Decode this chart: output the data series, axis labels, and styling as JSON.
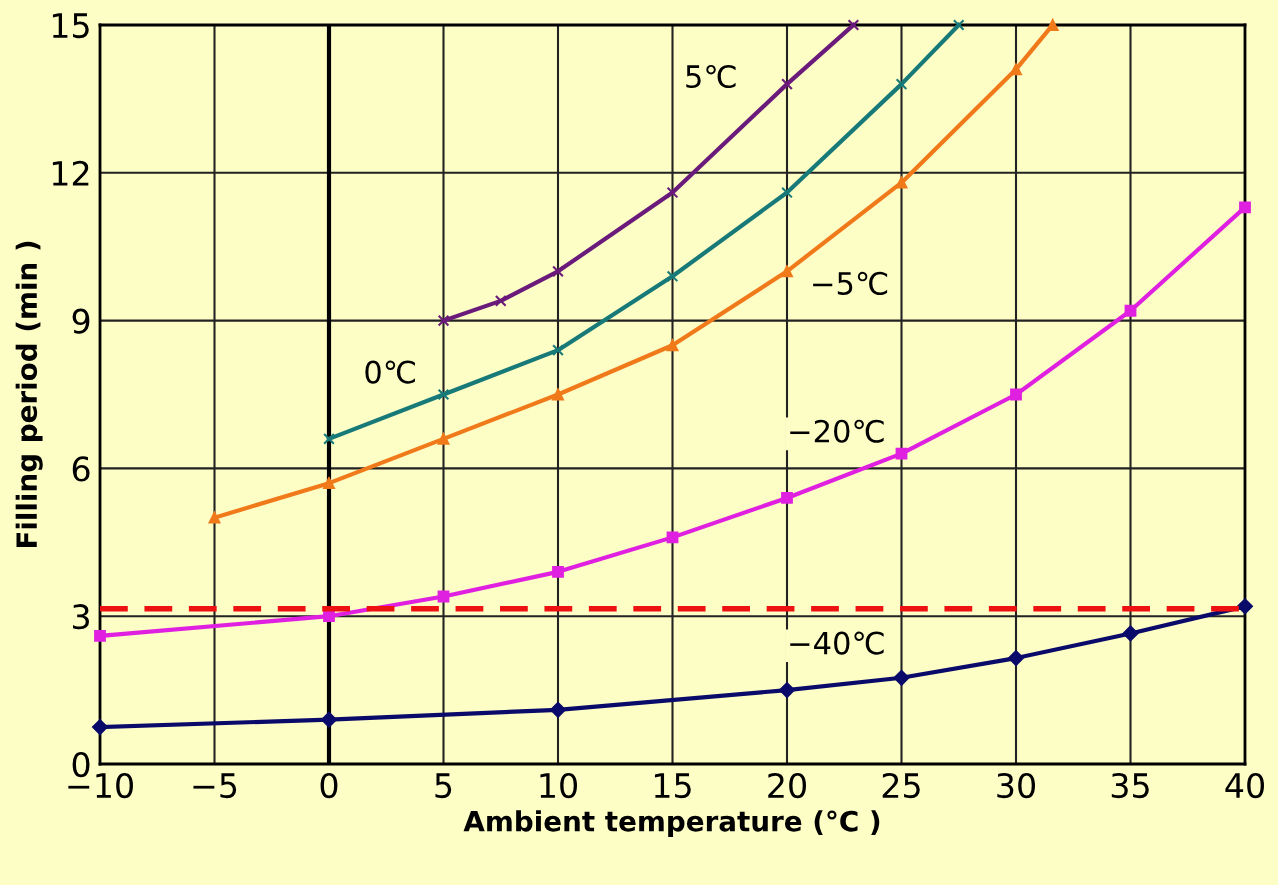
{
  "chart_data": {
    "type": "line",
    "xlabel": "Ambient temperature (°C )",
    "ylabel": "Filling period (min )",
    "xlim": [
      -10,
      40
    ],
    "xticks": [
      {
        "value": -10,
        "label": "−10"
      },
      {
        "value": -5,
        "label": "−5"
      },
      0,
      5,
      10,
      15,
      20,
      25,
      30,
      35,
      40
    ],
    "ylim": [
      0,
      15
    ],
    "yticks": [
      0,
      3,
      6,
      9,
      12,
      15
    ],
    "grid": true,
    "legend": false,
    "line_style": "solid",
    "series": [
      {
        "name": "5℃",
        "color": "#6a1a7a",
        "marker": "cross",
        "x": [
          5,
          7.5,
          10,
          15,
          20,
          22.9
        ],
        "values": [
          9,
          9.4,
          10,
          11.6,
          13.8,
          15
        ]
      },
      {
        "name": "0℃",
        "color": "#177a78",
        "marker": "cross",
        "x": [
          0,
          5,
          10,
          15,
          20,
          25,
          27.5
        ],
        "values": [
          6.6,
          7.5,
          8.4,
          9.9,
          11.6,
          13.8,
          15
        ]
      },
      {
        "name": "−5℃",
        "color": "#f07a1a",
        "marker": "triangle",
        "x": [
          -5,
          0,
          5,
          10,
          15,
          20,
          25,
          30,
          31.6
        ],
        "values": [
          5.0,
          5.7,
          6.6,
          7.5,
          8.5,
          10.0,
          11.8,
          14.1,
          15
        ]
      },
      {
        "name": "−20℃",
        "color": "#e020e0",
        "marker": "square",
        "x": [
          -10,
          0,
          5,
          10,
          15,
          20,
          25,
          30,
          35,
          40
        ],
        "values": [
          2.6,
          3.0,
          3.4,
          3.9,
          4.6,
          5.4,
          6.3,
          7.5,
          9.2,
          11.3
        ]
      },
      {
        "name": "−40℃",
        "color": "#0a0a6a",
        "marker": "diamond",
        "x": [
          -10,
          0,
          10,
          20,
          25,
          30,
          35,
          40
        ],
        "values": [
          0.75,
          0.9,
          1.1,
          1.5,
          1.75,
          2.15,
          2.65,
          3.2
        ]
      }
    ],
    "ref_lines": [
      {
        "axis": "y",
        "value": 3.15,
        "color": "#ee1111",
        "line_style": "dashed"
      }
    ]
  }
}
